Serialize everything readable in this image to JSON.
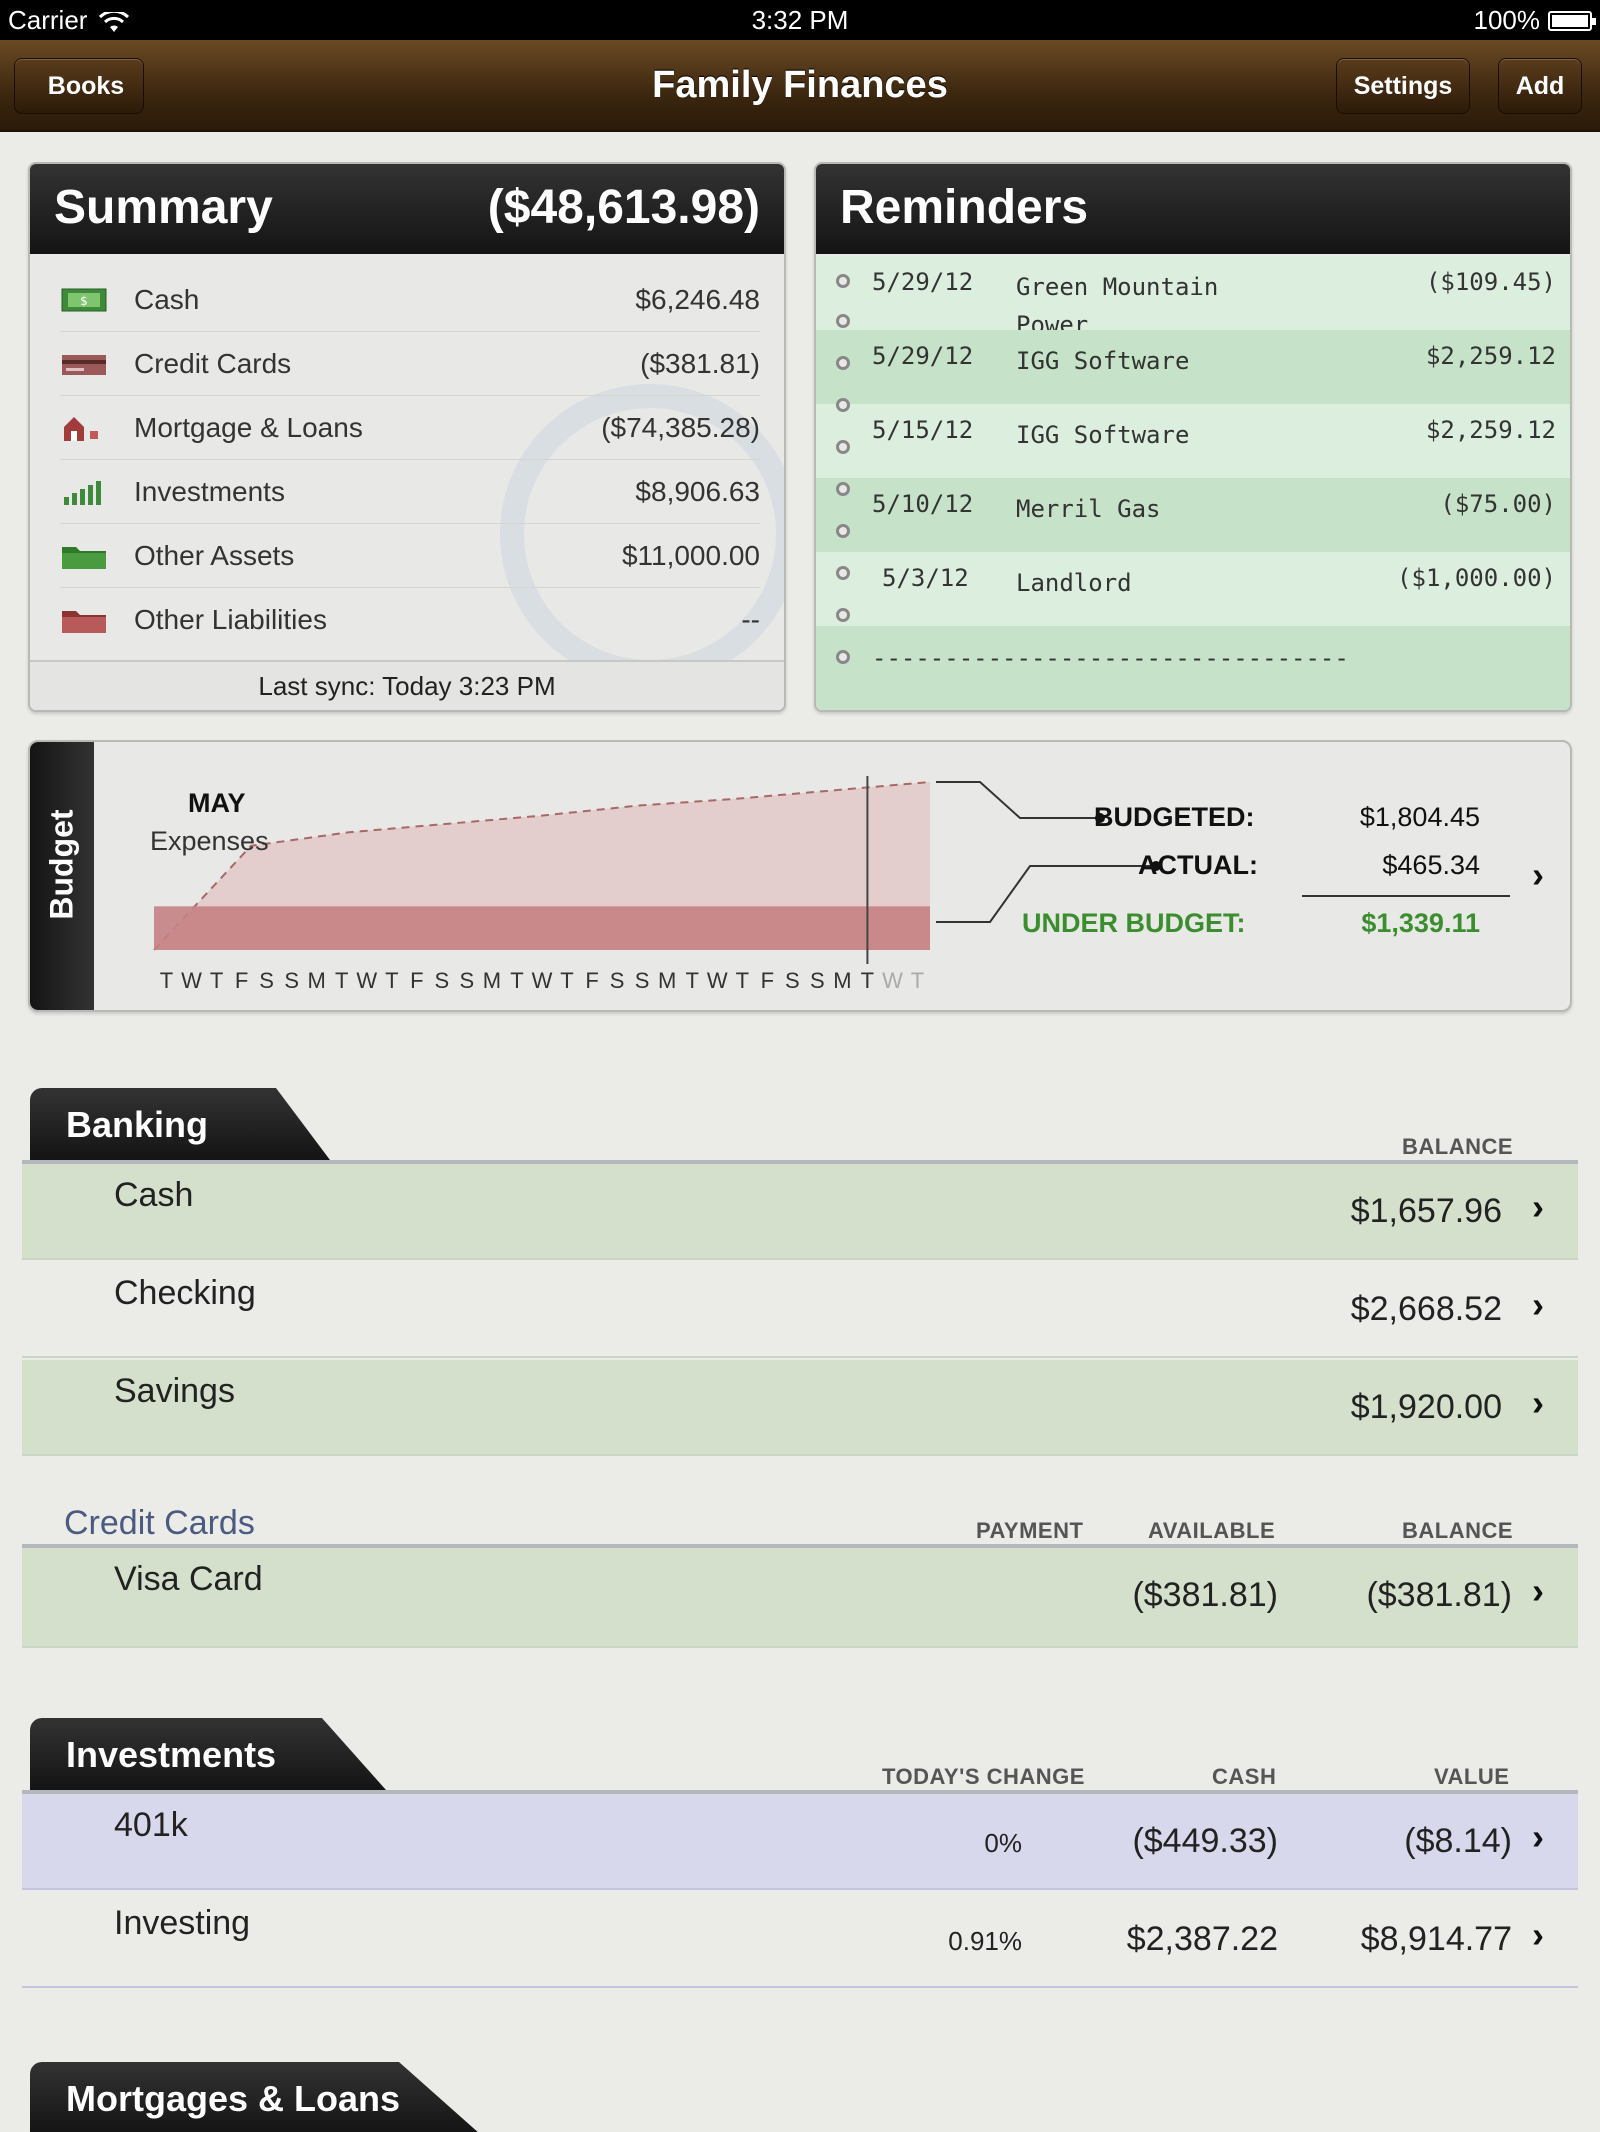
{
  "status_bar": {
    "carrier": "Carrier",
    "time": "3:32 PM",
    "battery": "100%"
  },
  "nav": {
    "back_label": "Books",
    "title": "Family Finances",
    "settings_label": "Settings",
    "add_label": "Add"
  },
  "summary": {
    "title": "Summary",
    "total": "($48,613.98)",
    "rows": [
      {
        "label": "Cash",
        "value": "$6,246.48",
        "icon": "cash-icon"
      },
      {
        "label": "Credit Cards",
        "value": "($381.81)",
        "icon": "credit-card-icon"
      },
      {
        "label": "Mortgage & Loans",
        "value": "($74,385.28)",
        "icon": "house-icon"
      },
      {
        "label": "Investments",
        "value": "$8,906.63",
        "icon": "bar-chart-icon"
      },
      {
        "label": "Other Assets",
        "value": "$11,000.00",
        "icon": "folder-green-icon"
      },
      {
        "label": "Other Liabilities",
        "value": "--",
        "icon": "folder-red-icon"
      }
    ],
    "last_sync": "Last sync: Today 3:23 PM"
  },
  "reminders": {
    "title": "Reminders",
    "items": [
      {
        "date": "5/29/12",
        "payee_line1": "Green Mountain",
        "payee_line2": "Power",
        "amount": "($109.45)"
      },
      {
        "date": "5/29/12",
        "payee_line1": "IGG Software",
        "payee_line2": "",
        "amount": "$2,259.12"
      },
      {
        "date": "5/15/12",
        "payee_line1": "IGG Software",
        "payee_line2": "",
        "amount": "$2,259.12"
      },
      {
        "date": "5/10/12",
        "payee_line1": "Merril Gas",
        "payee_line2": "",
        "amount": "($75.00)"
      },
      {
        "date": "5/3/12",
        "payee_line1": "Landlord",
        "payee_line2": "",
        "amount": "($1,000.00)"
      }
    ],
    "dashes": "---------------------------------"
  },
  "budget": {
    "tab_label": "Budget",
    "month": "MAY",
    "caption": "Expenses",
    "budgeted_label": "BUDGETED:",
    "budgeted_value": "$1,804.45",
    "actual_label": "ACTUAL:",
    "actual_value": "$465.34",
    "under_label": "UNDER BUDGET:",
    "under_value": "$1,339.11",
    "day_letters": [
      "T",
      "W",
      "T",
      "F",
      "S",
      "S",
      "M",
      "T",
      "W",
      "T",
      "F",
      "S",
      "S",
      "M",
      "T",
      "W",
      "T",
      "F",
      "S",
      "S",
      "M",
      "T",
      "W",
      "T",
      "F",
      "S",
      "S",
      "M",
      "T",
      "W",
      "T"
    ],
    "today_index": 28,
    "budget_line_fraction": [
      0.0,
      0.62,
      0.7,
      0.75,
      0.8,
      0.86,
      0.9,
      0.95,
      1.0
    ],
    "actual_fraction": 0.26,
    "colors": {
      "budget_fill": "#e2c8c8",
      "actual_fill": "#c58284",
      "green": "#3b8e2e"
    }
  },
  "banking": {
    "title": "Banking",
    "col_balance": "BALANCE",
    "accounts": [
      {
        "name": "Cash",
        "balance": "$1,657.96"
      },
      {
        "name": "Checking",
        "balance": "$2,668.52"
      },
      {
        "name": "Savings",
        "balance": "$1,920.00"
      }
    ]
  },
  "credit_cards": {
    "title": "Credit Cards",
    "col_payment": "PAYMENT",
    "col_available": "AVAILABLE",
    "col_balance": "BALANCE",
    "accounts": [
      {
        "name": "Visa Card",
        "available": "($381.81)",
        "balance": "($381.81)"
      }
    ]
  },
  "investments": {
    "title": "Investments",
    "col_change": "TODAY'S CHANGE",
    "col_cash": "CASH",
    "col_value": "VALUE",
    "accounts": [
      {
        "name": "401k",
        "change": "0%",
        "cash": "($449.33)",
        "value": "($8.14)"
      },
      {
        "name": "Investing",
        "change": "0.91%",
        "cash": "$2,387.22",
        "value": "$8,914.77"
      }
    ]
  },
  "mortgages": {
    "title": "Mortgages & Loans"
  }
}
